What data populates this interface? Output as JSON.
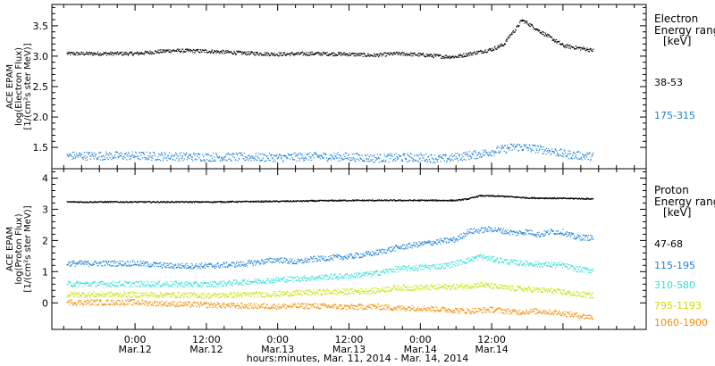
{
  "chart_data": [
    {
      "type": "scatter",
      "name": "electron-panel",
      "ylabel": [
        "ACE EPAM",
        "log(Electron Flux)",
        "[1/(cm²s ster MeV)]"
      ],
      "yticks": [
        "1.5",
        "2.0",
        "2.5",
        "3.0",
        "3.5"
      ],
      "ylim": [
        1.15,
        3.85
      ],
      "legend_title": [
        "Electron",
        "Energy range",
        "[keV]"
      ],
      "series": [
        {
          "name": "38-53",
          "color": "#000000",
          "points": [
            [
              0,
              3.05
            ],
            [
              6,
              3.1
            ],
            [
              12,
              3.09
            ],
            [
              18,
              3.06
            ],
            [
              24,
              3.04
            ],
            [
              30,
              3.05
            ],
            [
              36,
              3.04
            ],
            [
              40,
              3.02
            ],
            [
              44,
              3.05
            ],
            [
              48,
              3.03
            ],
            [
              52,
              3.0
            ],
            [
              54,
              3.0
            ],
            [
              58,
              3.08
            ],
            [
              60,
              3.12
            ],
            [
              62,
              3.2
            ],
            [
              63,
              3.35
            ],
            [
              64,
              3.45
            ],
            [
              65,
              3.6
            ],
            [
              66,
              3.55
            ],
            [
              68,
              3.42
            ],
            [
              70,
              3.3
            ],
            [
              72,
              3.18
            ],
            [
              74,
              3.15
            ],
            [
              76,
              3.12
            ],
            [
              77,
              3.1
            ]
          ]
        },
        {
          "name": "175-315",
          "color": "#1a7fd6",
          "points": [
            [
              0,
              1.37
            ],
            [
              6,
              1.36
            ],
            [
              12,
              1.35
            ],
            [
              18,
              1.35
            ],
            [
              24,
              1.34
            ],
            [
              30,
              1.36
            ],
            [
              36,
              1.35
            ],
            [
              40,
              1.33
            ],
            [
              44,
              1.34
            ],
            [
              48,
              1.34
            ],
            [
              52,
              1.32
            ],
            [
              54,
              1.35
            ],
            [
              58,
              1.4
            ],
            [
              62,
              1.48
            ],
            [
              64,
              1.52
            ],
            [
              66,
              1.5
            ],
            [
              68,
              1.48
            ],
            [
              70,
              1.45
            ],
            [
              72,
              1.4
            ],
            [
              74,
              1.38
            ],
            [
              77,
              1.36
            ]
          ]
        }
      ]
    },
    {
      "type": "scatter",
      "name": "proton-panel",
      "ylabel": [
        "ACE EPAM",
        "log(Proton Flux)",
        "[1/(cm²s ster MeV)]"
      ],
      "yticks": [
        "0",
        "1",
        "2",
        "3",
        "4"
      ],
      "ylim": [
        -0.85,
        4.3
      ],
      "legend_title": [
        "Proton",
        "Energy range",
        "[keV]"
      ],
      "series": [
        {
          "name": "47-68",
          "color": "#000000",
          "points": [
            [
              0,
              3.25
            ],
            [
              12,
              3.25
            ],
            [
              24,
              3.27
            ],
            [
              36,
              3.3
            ],
            [
              48,
              3.3
            ],
            [
              54,
              3.3
            ],
            [
              56,
              3.35
            ],
            [
              58,
              3.45
            ],
            [
              62,
              3.43
            ],
            [
              66,
              3.38
            ],
            [
              70,
              3.37
            ],
            [
              74,
              3.36
            ],
            [
              77,
              3.35
            ]
          ]
        },
        {
          "name": "115-195",
          "color": "#1a7fd6",
          "points": [
            [
              0,
              1.28
            ],
            [
              6,
              1.2
            ],
            [
              12,
              1.2
            ],
            [
              18,
              1.26
            ],
            [
              24,
              1.4
            ],
            [
              27,
              1.32
            ],
            [
              30,
              1.42
            ],
            [
              36,
              1.5
            ],
            [
              40,
              1.6
            ],
            [
              44,
              1.78
            ],
            [
              48,
              1.9
            ],
            [
              52,
              2.0
            ],
            [
              54,
              2.05
            ],
            [
              56,
              2.3
            ],
            [
              60,
              2.38
            ],
            [
              64,
              2.25
            ],
            [
              66,
              2.3
            ],
            [
              68,
              2.2
            ],
            [
              70,
              2.3
            ],
            [
              72,
              2.28
            ],
            [
              74,
              2.12
            ],
            [
              77,
              2.1
            ]
          ]
        },
        {
          "name": "310-580",
          "color": "#2ee0d6",
          "points": [
            [
              0,
              0.62
            ],
            [
              6,
              0.62
            ],
            [
              12,
              0.6
            ],
            [
              18,
              0.68
            ],
            [
              24,
              0.75
            ],
            [
              30,
              0.82
            ],
            [
              36,
              0.88
            ],
            [
              40,
              0.95
            ],
            [
              44,
              1.1
            ],
            [
              48,
              1.15
            ],
            [
              52,
              1.2
            ],
            [
              56,
              1.38
            ],
            [
              58,
              1.5
            ],
            [
              60,
              1.42
            ],
            [
              64,
              1.3
            ],
            [
              68,
              1.25
            ],
            [
              72,
              1.22
            ],
            [
              74,
              1.1
            ],
            [
              77,
              1.05
            ]
          ]
        },
        {
          "name": "795-1193",
          "color": "#c8e000",
          "points": [
            [
              0,
              0.28
            ],
            [
              6,
              0.27
            ],
            [
              12,
              0.25
            ],
            [
              18,
              0.27
            ],
            [
              24,
              0.3
            ],
            [
              30,
              0.35
            ],
            [
              36,
              0.38
            ],
            [
              40,
              0.4
            ],
            [
              44,
              0.5
            ],
            [
              48,
              0.5
            ],
            [
              52,
              0.52
            ],
            [
              56,
              0.55
            ],
            [
              58,
              0.6
            ],
            [
              62,
              0.5
            ],
            [
              66,
              0.45
            ],
            [
              70,
              0.4
            ],
            [
              74,
              0.3
            ],
            [
              77,
              0.25
            ]
          ]
        },
        {
          "name": "1060-1900",
          "color": "#f28c00",
          "points": [
            [
              0,
              0.03
            ],
            [
              6,
              -0.02
            ],
            [
              12,
              -0.05
            ],
            [
              18,
              -0.08
            ],
            [
              24,
              -0.1
            ],
            [
              30,
              -0.08
            ],
            [
              36,
              -0.12
            ],
            [
              40,
              -0.1
            ],
            [
              44,
              -0.15
            ],
            [
              48,
              -0.15
            ],
            [
              52,
              -0.2
            ],
            [
              56,
              -0.25
            ],
            [
              60,
              -0.2
            ],
            [
              64,
              -0.28
            ],
            [
              68,
              -0.25
            ],
            [
              72,
              -0.32
            ],
            [
              74,
              -0.38
            ],
            [
              77,
              -0.45
            ]
          ]
        }
      ]
    }
  ],
  "xaxis": {
    "xlim": [
      -14,
      86
    ],
    "major_ticks": [
      {
        "h": 0,
        "line1": "0:00",
        "line2": "Mar.12"
      },
      {
        "h": 12,
        "line1": "12:00",
        "line2": "Mar.12"
      },
      {
        "h": 24,
        "line1": "0:00",
        "line2": "Mar.13"
      },
      {
        "h": 36,
        "line1": "12:00",
        "line2": "Mar.13"
      },
      {
        "h": 48,
        "line1": "0:00",
        "line2": "Mar.14"
      },
      {
        "h": 60,
        "line1": "12:00",
        "line2": "Mar.14"
      },
      {
        "h": 72,
        "line1": "",
        "line2": ""
      }
    ],
    "minor_step_h": 3,
    "label": "hours:minutes, Mar. 11, 2014 - Mar. 14, 2014"
  }
}
